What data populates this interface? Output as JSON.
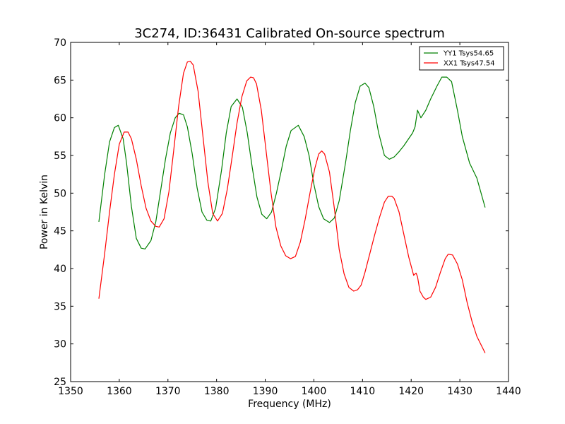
{
  "chart_data": {
    "type": "line",
    "title": "3C274, ID:36431 Calibrated On-source spectrum",
    "xlabel": "Frequency (MHz)",
    "ylabel": "Power in Kelvin",
    "xlim": [
      1350,
      1440
    ],
    "ylim": [
      25,
      70
    ],
    "xticks": [
      1350,
      1360,
      1370,
      1380,
      1390,
      1400,
      1410,
      1420,
      1430,
      1440
    ],
    "yticks": [
      25,
      30,
      35,
      40,
      45,
      50,
      55,
      60,
      65,
      70
    ],
    "grid": false,
    "legend_position": "top-right",
    "series": [
      {
        "name": "YY1 Tsys54.65",
        "color": "#008000",
        "x": [
          1355.8,
          1357,
          1358,
          1359,
          1359.8,
          1360.8,
          1361.5,
          1362.5,
          1363.5,
          1364.5,
          1365.3,
          1366.5,
          1367.5,
          1368.5,
          1369.5,
          1370.5,
          1371.5,
          1372.3,
          1373.2,
          1374,
          1375,
          1376,
          1377,
          1378,
          1378.8,
          1379.8,
          1381,
          1382,
          1383,
          1384.2,
          1385.3,
          1386.3,
          1387.3,
          1388.3,
          1389.3,
          1390.3,
          1391.3,
          1392.3,
          1393.3,
          1394.3,
          1395.3,
          1396.8,
          1398,
          1399,
          1400,
          1401,
          1402,
          1403.2,
          1404.2,
          1405.2,
          1406.5,
          1407.5,
          1408.5,
          1409.5,
          1410.5,
          1411.3,
          1412.3,
          1413.3,
          1414.5,
          1415.5,
          1416.5,
          1417.5,
          1418.5,
          1420.3,
          1420.8,
          1421.3,
          1422,
          1423,
          1424,
          1425.3,
          1426.3,
          1427.3,
          1428.3,
          1429.5,
          1430.5,
          1432,
          1433.5,
          1435.2
        ],
        "values": [
          46.2,
          52.5,
          56.8,
          58.7,
          59.0,
          57.2,
          54.0,
          48.2,
          44.0,
          42.7,
          42.6,
          43.7,
          46.2,
          50.3,
          54.5,
          58.0,
          60.0,
          60.6,
          60.4,
          58.8,
          55.2,
          50.7,
          47.5,
          46.4,
          46.3,
          48.0,
          53.0,
          58.0,
          61.5,
          62.5,
          61.4,
          58.0,
          53.5,
          49.5,
          47.2,
          46.6,
          47.5,
          50.0,
          53.0,
          56.2,
          58.3,
          59.0,
          57.5,
          55.0,
          51.2,
          48.2,
          46.6,
          46.1,
          46.7,
          49.0,
          54.0,
          58.3,
          62.0,
          64.2,
          64.6,
          64.0,
          61.5,
          58.0,
          55.0,
          54.5,
          54.8,
          55.5,
          56.3,
          58.0,
          58.8,
          61.0,
          60.0,
          61.0,
          62.5,
          64.2,
          65.4,
          65.4,
          64.8,
          61.0,
          57.5,
          54.0,
          52.0,
          48.1
        ]
      },
      {
        "name": "XX1 Tsys47.54",
        "color": "#ff0000",
        "x": [
          1355.8,
          1357,
          1358,
          1359,
          1360,
          1361,
          1361.8,
          1362.5,
          1363.5,
          1364.5,
          1365.5,
          1366.5,
          1367.5,
          1368.2,
          1369.2,
          1370.2,
          1371.2,
          1372.2,
          1373.2,
          1374,
          1374.6,
          1375.2,
          1376.2,
          1377.2,
          1378.2,
          1379.2,
          1380.2,
          1381.2,
          1382.2,
          1383.2,
          1384.2,
          1385.2,
          1386.2,
          1387,
          1387.6,
          1388.2,
          1389.2,
          1390.2,
          1391.2,
          1392.2,
          1393.2,
          1394.2,
          1395.2,
          1396.2,
          1397.2,
          1398.2,
          1399.2,
          1400.2,
          1401,
          1401.6,
          1402.2,
          1403.2,
          1404.2,
          1405.2,
          1406.2,
          1407.2,
          1408.2,
          1409,
          1409.7,
          1410.5,
          1411.5,
          1412.5,
          1413.5,
          1414.5,
          1415.3,
          1416,
          1416.5,
          1417.5,
          1418.5,
          1419.5,
          1420.5,
          1421,
          1421.3,
          1421.8,
          1422.5,
          1423,
          1424,
          1425,
          1426,
          1427,
          1427.6,
          1428.5,
          1429.5,
          1430.5,
          1431.5,
          1432.5,
          1433.5,
          1435.2
        ],
        "values": [
          36.0,
          42.0,
          47.5,
          52.5,
          56.5,
          58.1,
          58.1,
          57.2,
          54.5,
          51.0,
          48.0,
          46.3,
          45.6,
          45.5,
          46.6,
          50.2,
          55.7,
          61.5,
          65.9,
          67.4,
          67.5,
          67.0,
          63.5,
          57.5,
          51.5,
          47.3,
          46.3,
          47.3,
          50.5,
          54.8,
          59.3,
          62.8,
          64.9,
          65.4,
          65.3,
          64.5,
          61.0,
          55.5,
          50.0,
          45.5,
          43.0,
          41.7,
          41.3,
          41.6,
          43.5,
          46.5,
          50.0,
          53.3,
          55.2,
          55.6,
          55.2,
          52.8,
          48.0,
          42.5,
          39.3,
          37.5,
          37.0,
          37.2,
          37.8,
          39.5,
          42.0,
          44.5,
          46.8,
          48.8,
          49.6,
          49.6,
          49.3,
          47.5,
          44.5,
          41.5,
          39.1,
          39.4,
          38.9,
          37.0,
          36.2,
          35.9,
          36.2,
          37.5,
          39.5,
          41.3,
          41.9,
          41.8,
          40.6,
          38.5,
          35.5,
          33.0,
          31.0,
          28.8
        ]
      }
    ]
  }
}
